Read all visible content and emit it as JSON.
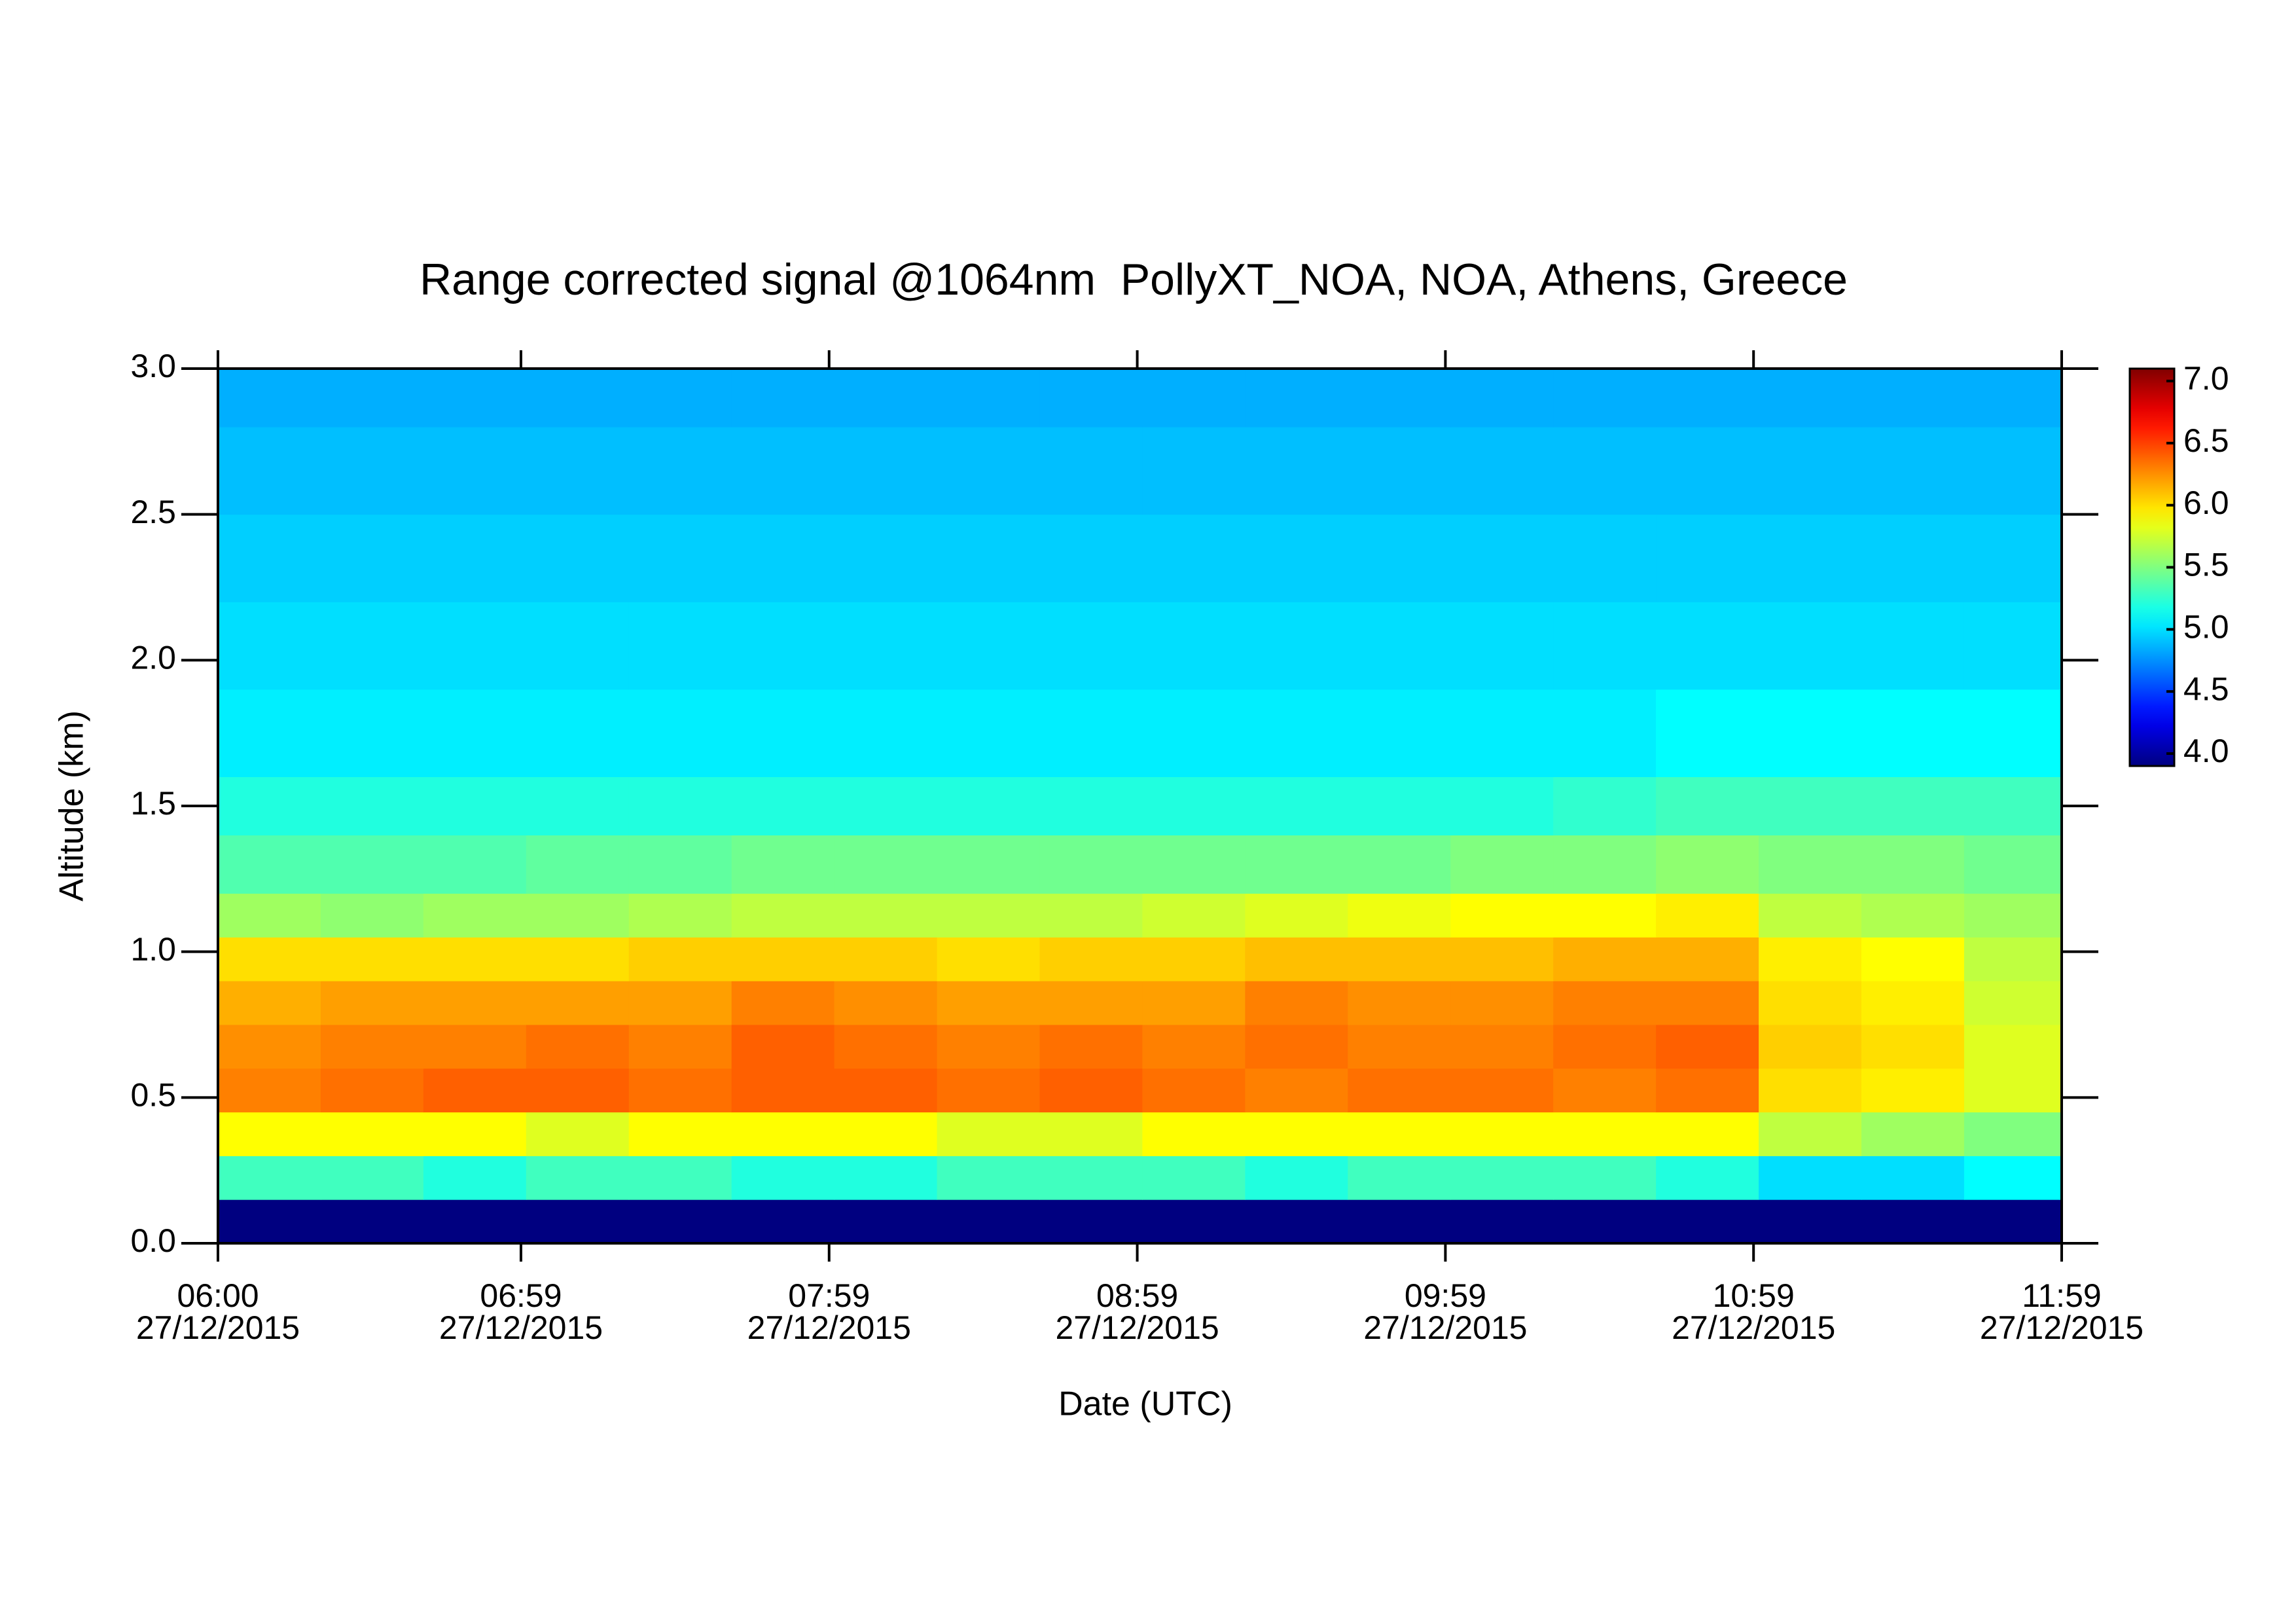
{
  "chart_data": {
    "type": "heatmap",
    "title": "Range corrected signal @1064nm  PollyXT_NOA, NOA, Athens, Greece",
    "xlabel": "Date (UTC)",
    "ylabel": "Altitude (km)",
    "xlim": [
      "06:00",
      "11:59"
    ],
    "xticks": [
      "06:00",
      "06:59",
      "07:59",
      "08:59",
      "09:59",
      "10:59",
      "11:59"
    ],
    "xtick_date": "27/12/2015",
    "ylim": [
      0,
      3.0
    ],
    "yticks": [
      {
        "value": 0,
        "label": "0.0"
      },
      0.5,
      {
        "value": 1,
        "label": "1.0"
      },
      1.5,
      {
        "value": 2,
        "label": "2.0"
      },
      2.5,
      {
        "value": 3,
        "label": "3.0"
      }
    ],
    "colormap": "jet",
    "clim": [
      3.9,
      7.1
    ],
    "cticks": [
      {
        "value": 4,
        "label": "4.0"
      },
      4.5,
      {
        "value": 5,
        "label": "5.0"
      },
      5.5,
      {
        "value": 6,
        "label": "6.0"
      },
      6.5,
      {
        "value": 7,
        "label": "7.0"
      }
    ],
    "x": [
      "06:00",
      "06:20",
      "06:40",
      "07:00",
      "07:20",
      "07:40",
      "08:00",
      "08:20",
      "08:40",
      "09:00",
      "09:20",
      "09:40",
      "10:00",
      "10:20",
      "10:40",
      "11:00",
      "11:20",
      "11:40"
    ],
    "y": [
      0,
      0.15,
      0.3,
      0.45,
      0.6,
      0.75,
      0.9,
      1.05,
      1.2,
      1.4,
      1.6,
      1.9,
      2.2,
      2.5,
      2.8
    ],
    "z": [
      [
        3.9,
        3.9,
        3.9,
        3.9,
        3.9,
        3.9,
        3.9,
        3.9,
        3.9,
        3.9,
        3.9,
        3.9,
        3.9,
        3.9,
        3.9,
        3.9,
        3.9,
        3.9
      ],
      [
        5.3,
        5.3,
        5.2,
        5.3,
        5.3,
        5.2,
        5.2,
        5.3,
        5.3,
        5.3,
        5.2,
        5.3,
        5.3,
        5.3,
        5.2,
        5.0,
        5.0,
        5.1
      ],
      [
        5.9,
        5.9,
        5.9,
        5.8,
        5.9,
        5.9,
        5.9,
        5.8,
        5.8,
        5.9,
        5.9,
        5.9,
        5.9,
        5.9,
        5.9,
        5.7,
        5.6,
        5.5
      ],
      [
        6.3,
        6.35,
        6.4,
        6.4,
        6.35,
        6.4,
        6.4,
        6.35,
        6.4,
        6.35,
        6.3,
        6.35,
        6.35,
        6.3,
        6.35,
        6.0,
        5.95,
        5.8
      ],
      [
        6.25,
        6.3,
        6.3,
        6.35,
        6.3,
        6.4,
        6.35,
        6.3,
        6.35,
        6.3,
        6.35,
        6.3,
        6.3,
        6.35,
        6.4,
        6.05,
        6.0,
        5.8
      ],
      [
        6.15,
        6.2,
        6.2,
        6.2,
        6.2,
        6.3,
        6.25,
        6.2,
        6.2,
        6.2,
        6.3,
        6.25,
        6.25,
        6.3,
        6.3,
        6.0,
        5.95,
        5.75
      ],
      [
        6.0,
        6.0,
        6.0,
        6.0,
        6.05,
        6.05,
        6.05,
        6.0,
        6.05,
        6.05,
        6.1,
        6.1,
        6.1,
        6.15,
        6.15,
        5.95,
        5.9,
        5.7
      ],
      [
        5.6,
        5.55,
        5.6,
        5.6,
        5.65,
        5.7,
        5.7,
        5.7,
        5.7,
        5.75,
        5.8,
        5.85,
        5.9,
        5.9,
        5.95,
        5.7,
        5.65,
        5.6
      ],
      [
        5.35,
        5.35,
        5.35,
        5.4,
        5.4,
        5.45,
        5.45,
        5.45,
        5.45,
        5.45,
        5.45,
        5.45,
        5.5,
        5.5,
        5.55,
        5.5,
        5.5,
        5.45
      ],
      [
        5.2,
        5.2,
        5.2,
        5.2,
        5.2,
        5.2,
        5.2,
        5.2,
        5.2,
        5.2,
        5.2,
        5.2,
        5.2,
        5.25,
        5.3,
        5.3,
        5.3,
        5.3
      ],
      [
        5.05,
        5.05,
        5.05,
        5.05,
        5.05,
        5.05,
        5.05,
        5.05,
        5.05,
        5.05,
        5.05,
        5.05,
        5.05,
        5.05,
        5.1,
        5.1,
        5.1,
        5.1
      ],
      [
        5.0,
        5.0,
        5.0,
        5.0,
        5.0,
        5.0,
        5.0,
        5.0,
        5.0,
        5.0,
        5.0,
        5.0,
        5.0,
        5.0,
        5.0,
        5.0,
        5.0,
        5.0
      ],
      [
        4.95,
        4.95,
        4.95,
        4.95,
        4.95,
        4.95,
        4.95,
        4.95,
        4.95,
        4.95,
        4.95,
        4.95,
        4.95,
        4.95,
        4.95,
        4.95,
        4.95,
        4.95
      ],
      [
        4.9,
        4.9,
        4.9,
        4.9,
        4.9,
        4.9,
        4.9,
        4.9,
        4.9,
        4.9,
        4.9,
        4.9,
        4.9,
        4.9,
        4.9,
        4.9,
        4.9,
        4.9
      ],
      [
        4.85,
        4.85,
        4.85,
        4.85,
        4.85,
        4.85,
        4.85,
        4.85,
        4.85,
        4.85,
        4.85,
        4.85,
        4.85,
        4.85,
        4.85,
        4.85,
        4.85,
        4.85
      ]
    ]
  }
}
